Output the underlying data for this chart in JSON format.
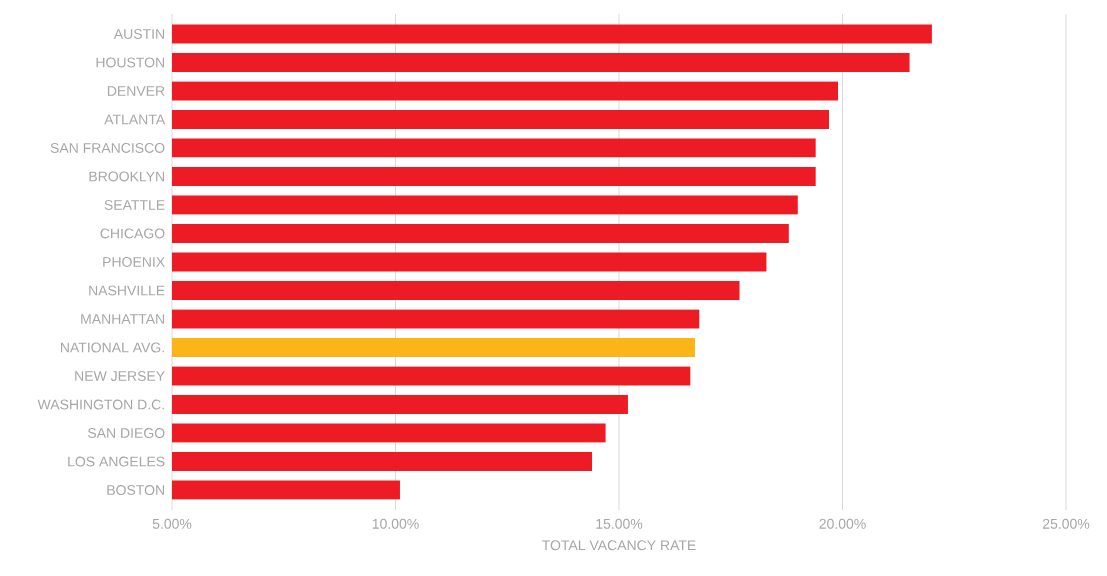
{
  "chart_data": {
    "type": "bar",
    "orientation": "horizontal",
    "xlabel": "TOTAL VACANCY RATE",
    "categories": [
      "AUSTIN",
      "HOUSTON",
      "DENVER",
      "ATLANTA",
      "SAN FRANCISCO",
      "BROOKLYN",
      "SEATTLE",
      "CHICAGO",
      "PHOENIX",
      "NASHVILLE",
      "MANHATTAN",
      "NATIONAL AVG.",
      "NEW JERSEY",
      "WASHINGTON D.C.",
      "SAN DIEGO",
      "LOS ANGELES",
      "BOSTON"
    ],
    "values": [
      22.0,
      21.5,
      19.9,
      19.7,
      19.4,
      19.4,
      19.0,
      18.8,
      18.3,
      17.7,
      16.8,
      16.7,
      16.6,
      15.2,
      14.7,
      14.4,
      10.1
    ],
    "colors": [
      "#ed1c24",
      "#ed1c24",
      "#ed1c24",
      "#ed1c24",
      "#ed1c24",
      "#ed1c24",
      "#ed1c24",
      "#ed1c24",
      "#ed1c24",
      "#ed1c24",
      "#ed1c24",
      "#fbb519",
      "#ed1c24",
      "#ed1c24",
      "#ed1c24",
      "#ed1c24",
      "#ed1c24"
    ],
    "xlim": [
      5,
      25
    ],
    "xticks": [
      {
        "value": 5,
        "label": "5.00%"
      },
      {
        "value": 10,
        "label": "10.00%"
      },
      {
        "value": 15,
        "label": "15.00%"
      },
      {
        "value": 20,
        "label": "20.00%"
      },
      {
        "value": 25,
        "label": "25.00%"
      }
    ],
    "grid": "x"
  }
}
